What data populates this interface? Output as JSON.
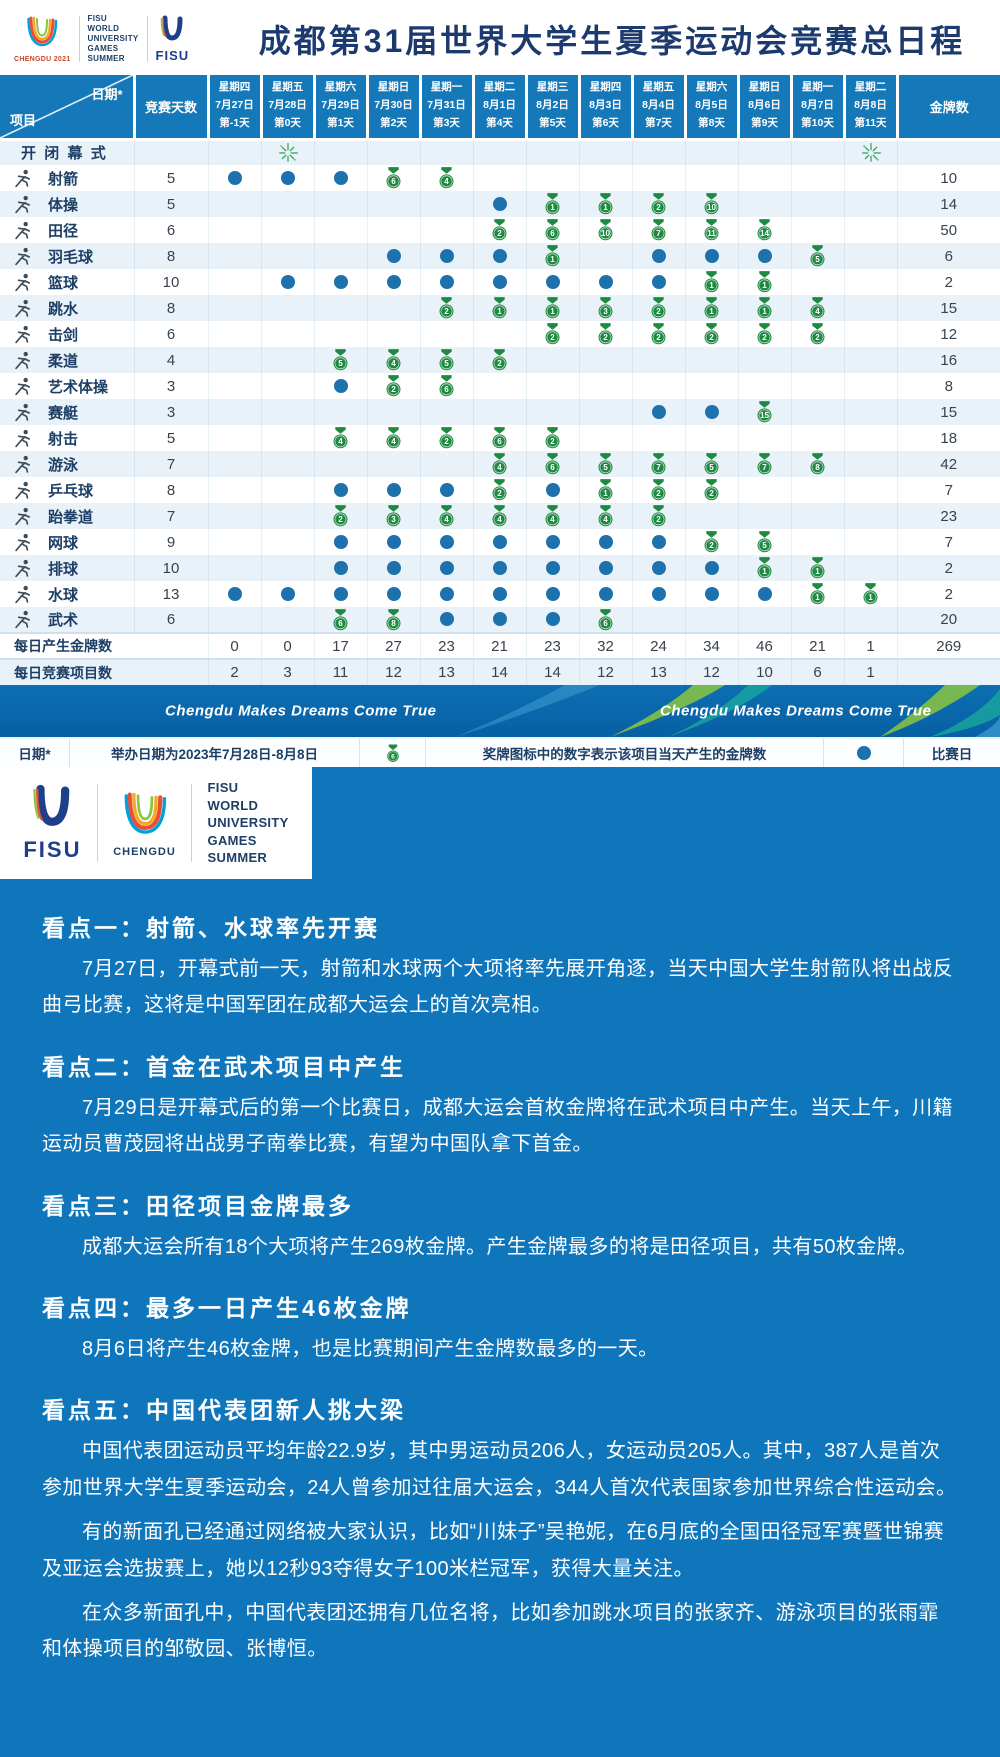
{
  "header": {
    "title": "成都第31届世界大学生夏季运动会竞赛总日程"
  },
  "logos": {
    "chengdu_emblem_caption": "CHENGDU 2021",
    "fisu_wordmark": "FISU",
    "chengdu_wordmark": "CHENGDU",
    "games_lines": [
      "FISU",
      "WORLD",
      "UNIVERSITY",
      "GAMES",
      "SUMMER"
    ]
  },
  "colors": {
    "table_blue": "#1478b9",
    "content_blue": "#0f76bc",
    "medal_green": "#1e8a41",
    "dot_blue": "#1d72ae",
    "navy_text": "#1d3f66",
    "light_row": "#e9f2f8"
  },
  "table": {
    "corner_date": "日期*",
    "corner_project": "项目",
    "col_days": "竞赛天数",
    "col_gold": "金牌数",
    "dates": [
      {
        "weekday": "星期四",
        "date": "7月27日",
        "day": "第-1天"
      },
      {
        "weekday": "星期五",
        "date": "7月28日",
        "day": "第0天"
      },
      {
        "weekday": "星期六",
        "date": "7月29日",
        "day": "第1天"
      },
      {
        "weekday": "星期日",
        "date": "7月30日",
        "day": "第2天"
      },
      {
        "weekday": "星期一",
        "date": "7月31日",
        "day": "第3天"
      },
      {
        "weekday": "星期二",
        "date": "8月1日",
        "day": "第4天"
      },
      {
        "weekday": "星期三",
        "date": "8月2日",
        "day": "第5天"
      },
      {
        "weekday": "星期四",
        "date": "8月3日",
        "day": "第6天"
      },
      {
        "weekday": "星期五",
        "date": "8月4日",
        "day": "第7天"
      },
      {
        "weekday": "星期六",
        "date": "8月5日",
        "day": "第8天"
      },
      {
        "weekday": "星期日",
        "date": "8月6日",
        "day": "第9天"
      },
      {
        "weekday": "星期一",
        "date": "8月7日",
        "day": "第10天"
      },
      {
        "weekday": "星期二",
        "date": "8月8日",
        "day": "第11天"
      }
    ],
    "ceremony": {
      "label": "开闭幕式",
      "cells": [
        "",
        "fw",
        "",
        "",
        "",
        "",
        "",
        "",
        "",
        "",
        "",
        "",
        "fw"
      ]
    },
    "sports": [
      {
        "icon": "archery-icon",
        "name": "射箭",
        "days": "5",
        "gold": "10",
        "cells": [
          "dot",
          "dot",
          "dot",
          "6",
          "4",
          "",
          "",
          "",
          "",
          "",
          "",
          "",
          ""
        ]
      },
      {
        "icon": "artistic-gymnastics-icon",
        "name": "体操",
        "days": "5",
        "gold": "14",
        "cells": [
          "",
          "",
          "",
          "",
          "",
          "dot",
          "1",
          "1",
          "2",
          "10",
          "",
          "",
          ""
        ]
      },
      {
        "icon": "athletics-icon",
        "name": "田径",
        "days": "6",
        "gold": "50",
        "cells": [
          "",
          "",
          "",
          "",
          "",
          "2",
          "6",
          "10",
          "7",
          "11",
          "14",
          "",
          ""
        ]
      },
      {
        "icon": "badminton-icon",
        "name": "羽毛球",
        "days": "8",
        "gold": "6",
        "cells": [
          "",
          "",
          "",
          "dot",
          "dot",
          "dot",
          "1",
          "",
          "dot",
          "dot",
          "dot",
          "5",
          ""
        ]
      },
      {
        "icon": "basketball-icon",
        "name": "篮球",
        "days": "10",
        "gold": "2",
        "cells": [
          "",
          "dot",
          "dot",
          "dot",
          "dot",
          "dot",
          "dot",
          "dot",
          "dot",
          "1",
          "1",
          "",
          ""
        ]
      },
      {
        "icon": "diving-icon",
        "name": "跳水",
        "days": "8",
        "gold": "15",
        "cells": [
          "",
          "",
          "",
          "",
          "2",
          "1",
          "1",
          "3",
          "2",
          "1",
          "1",
          "4",
          ""
        ]
      },
      {
        "icon": "fencing-icon",
        "name": "击剑",
        "days": "6",
        "gold": "12",
        "cells": [
          "",
          "",
          "",
          "",
          "",
          "",
          "2",
          "2",
          "2",
          "2",
          "2",
          "2",
          ""
        ]
      },
      {
        "icon": "judo-icon",
        "name": "柔道",
        "days": "4",
        "gold": "16",
        "cells": [
          "",
          "",
          "5",
          "4",
          "5",
          "2",
          "",
          "",
          "",
          "",
          "",
          "",
          ""
        ]
      },
      {
        "icon": "rhythmic-gymnastics-icon",
        "name": "艺术体操",
        "days": "3",
        "gold": "8",
        "cells": [
          "",
          "",
          "dot",
          "2",
          "6",
          "",
          "",
          "",
          "",
          "",
          "",
          "",
          ""
        ]
      },
      {
        "icon": "rowing-icon",
        "name": "赛艇",
        "days": "3",
        "gold": "15",
        "cells": [
          "",
          "",
          "",
          "",
          "",
          "",
          "",
          "",
          "dot",
          "dot",
          "15",
          "",
          ""
        ]
      },
      {
        "icon": "shooting-icon",
        "name": "射击",
        "days": "5",
        "gold": "18",
        "cells": [
          "",
          "",
          "4",
          "4",
          "2",
          "6",
          "2",
          "",
          "",
          "",
          "",
          "",
          ""
        ]
      },
      {
        "icon": "swimming-icon",
        "name": "游泳",
        "days": "7",
        "gold": "42",
        "cells": [
          "",
          "",
          "",
          "",
          "",
          "4",
          "6",
          "5",
          "7",
          "5",
          "7",
          "8",
          ""
        ]
      },
      {
        "icon": "table-tennis-icon",
        "name": "乒乓球",
        "days": "8",
        "gold": "7",
        "cells": [
          "",
          "",
          "dot",
          "dot",
          "dot",
          "2",
          "dot",
          "1",
          "2",
          "2",
          "",
          "",
          ""
        ]
      },
      {
        "icon": "taekwondo-icon",
        "name": "跆拳道",
        "days": "7",
        "gold": "23",
        "cells": [
          "",
          "",
          "2",
          "3",
          "4",
          "4",
          "4",
          "4",
          "2",
          "",
          "",
          "",
          ""
        ]
      },
      {
        "icon": "tennis-icon",
        "name": "网球",
        "days": "9",
        "gold": "7",
        "cells": [
          "",
          "",
          "dot",
          "dot",
          "dot",
          "dot",
          "dot",
          "dot",
          "dot",
          "2",
          "5",
          "",
          ""
        ]
      },
      {
        "icon": "volleyball-icon",
        "name": "排球",
        "days": "10",
        "gold": "2",
        "cells": [
          "",
          "",
          "dot",
          "dot",
          "dot",
          "dot",
          "dot",
          "dot",
          "dot",
          "dot",
          "1",
          "1",
          ""
        ]
      },
      {
        "icon": "water-polo-icon",
        "name": "水球",
        "days": "13",
        "gold": "2",
        "cells": [
          "dot",
          "dot",
          "dot",
          "dot",
          "dot",
          "dot",
          "dot",
          "dot",
          "dot",
          "dot",
          "dot",
          "1",
          "1"
        ]
      },
      {
        "icon": "wushu-icon",
        "name": "武术",
        "days": "6",
        "gold": "20",
        "cells": [
          "",
          "",
          "6",
          "8",
          "dot",
          "dot",
          "dot",
          "6",
          "",
          "",
          "",
          "",
          ""
        ]
      }
    ],
    "summary_rows": [
      {
        "label": "每日产生金牌数",
        "values": [
          "0",
          "0",
          "17",
          "27",
          "23",
          "21",
          "23",
          "32",
          "24",
          "34",
          "46",
          "21",
          "1"
        ],
        "total": "269"
      },
      {
        "label": "每日竞赛项目数",
        "values": [
          "2",
          "3",
          "11",
          "12",
          "13",
          "14",
          "14",
          "12",
          "13",
          "12",
          "10",
          "6",
          "1"
        ],
        "total": ""
      }
    ]
  },
  "banner": {
    "slogan": "Chengdu Makes Dreams Come True"
  },
  "legend": {
    "date_label": "日期*",
    "date_note": "举办日期为2023年7月28日-8月8日",
    "medal_example": "6",
    "medal_note": "奖牌图标中的数字表示该项目当天产生的金牌数",
    "dot_note": "比赛日"
  },
  "content": {
    "sections": [
      {
        "heading": "看点一：射箭、水球率先开赛",
        "paragraphs": [
          "7月27日，开幕式前一天，射箭和水球两个大项将率先展开角逐，当天中国大学生射箭队将出战反曲弓比赛，这将是中国军团在成都大运会上的首次亮相。"
        ]
      },
      {
        "heading": "看点二：首金在武术项目中产生",
        "paragraphs": [
          "7月29日是开幕式后的第一个比赛日，成都大运会首枚金牌将在武术项目中产生。当天上午，川籍运动员曹茂园将出战男子南拳比赛，有望为中国队拿下首金。"
        ]
      },
      {
        "heading": "看点三：田径项目金牌最多",
        "paragraphs": [
          "成都大运会所有18个大项将产生269枚金牌。产生金牌最多的将是田径项目，共有50枚金牌。"
        ]
      },
      {
        "heading": "看点四：最多一日产生46枚金牌",
        "paragraphs": [
          "8月6日将产生46枚金牌，也是比赛期间产生金牌数最多的一天。"
        ]
      },
      {
        "heading": "看点五：中国代表团新人挑大梁",
        "paragraphs": [
          "中国代表团运动员平均年龄22.9岁，其中男运动员206人，女运动员205人。其中，387人是首次参加世界大学生夏季运动会，24人曾参加过往届大运会，344人首次代表国家参加世界综合性运动会。",
          "有的新面孔已经通过网络被大家认识，比如“川妹子”吴艳妮，在6月底的全国田径冠军赛暨世锦赛及亚运会选拔赛上，她以12秒93夺得女子100米栏冠军，获得大量关注。",
          "在众多新面孔中，中国代表团还拥有几位名将，比如参加跳水项目的张家齐、游泳项目的张雨霏和体操项目的邹敬园、张博恒。"
        ]
      }
    ]
  }
}
